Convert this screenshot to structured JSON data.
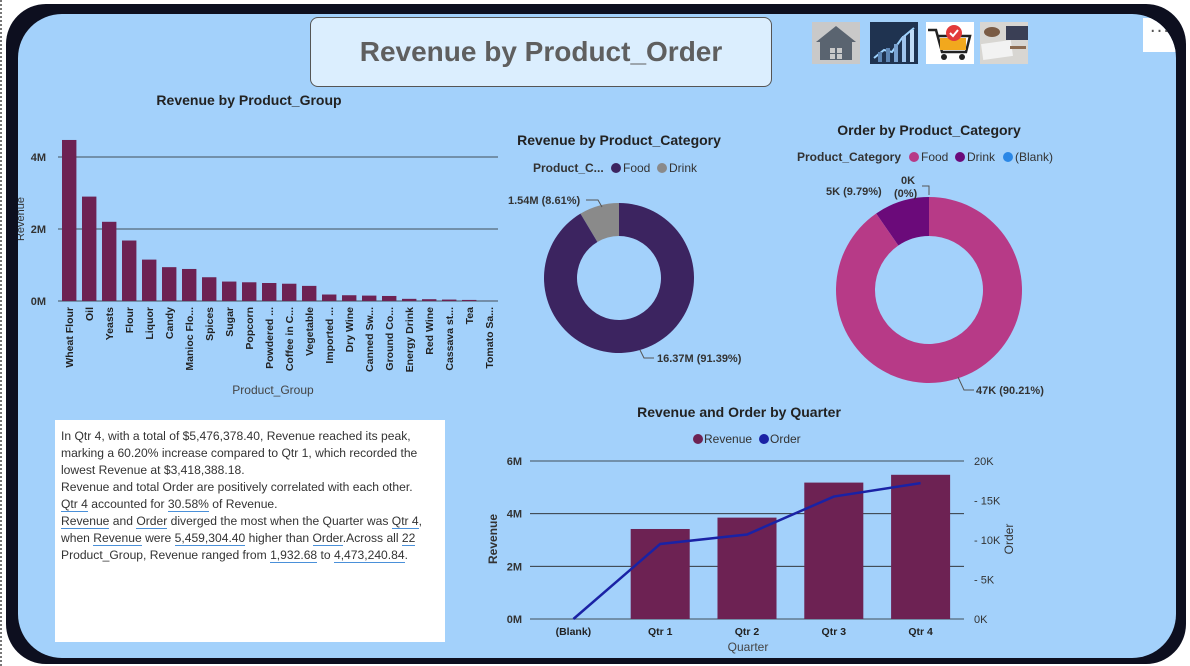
{
  "page": {
    "title": "Revenue by Product_Order"
  },
  "toolbar": {
    "more_label": "···",
    "icons": [
      "home-icon",
      "analytics-image-icon",
      "shopping-cart-icon",
      "business-meeting-image-icon"
    ]
  },
  "colors": {
    "maroon": "#6d2253",
    "purple": "#3c2460",
    "gray": "#8a8a8a",
    "pink": "#b73a87",
    "violet": "#6b0a7a",
    "blue": "#2a87e6",
    "navy": "#1a22a5",
    "canvas": "#a3d1fb"
  },
  "narrative": {
    "p1": "In Qtr 4, with a total of $5,476,378.40, Revenue reached its peak, marking a 60.20% increase compared to Qtr 1, which recorded the lowest Revenue at $3,418,388.18.",
    "p2": "Revenue and total Order are positively correlated with each other.",
    "p3_a": "Qtr 4",
    "p3_b": " accounted for ",
    "p3_c": "30.58%",
    "p3_d": " of Revenue.",
    "p4_a": "Revenue",
    "p4_b": " and ",
    "p4_c": "Order",
    "p4_d": " diverged the most when the Quarter was ",
    "p4_e": "Qtr 4",
    "p4_f": ", when ",
    "p4_g": "Revenue",
    "p4_h": " were ",
    "p4_i": "5,459,304.40",
    "p4_j": " higher than ",
    "p4_k": "Order",
    "p4_l": ".Across all ",
    "p4_m": "22",
    "p4_n": " Product_Group, Revenue ranged from ",
    "p4_o": "1,932.68",
    "p4_p": " to ",
    "p4_q": "4,473,240.84",
    "p4_r": "."
  },
  "chart_data": [
    {
      "type": "bar",
      "title": "Revenue by Product_Group",
      "xlabel": "Product_Group",
      "ylabel": "Revenue",
      "categories": [
        "Wheat Flour",
        "Oil",
        "Yeasts",
        "Flour",
        "Liquor",
        "Candy",
        "Manioc Flo...",
        "Spices",
        "Sugar",
        "Popcorn",
        "Powdered ...",
        "Coffee in C...",
        "Vegetable",
        "Imported ...",
        "Dry Wine",
        "Canned Sw...",
        "Ground Co...",
        "Energy Drink",
        "Red Wine",
        "Cassava st...",
        "Tea",
        "Tomato Sa..."
      ],
      "values": [
        4473240.84,
        2900000,
        2200000,
        1680000,
        1150000,
        940000,
        890000,
        660000,
        540000,
        520000,
        500000,
        480000,
        420000,
        180000,
        160000,
        150000,
        140000,
        60000,
        50000,
        40000,
        30000,
        1932.68
      ],
      "ylim": [
        0,
        5000000
      ],
      "yticks": [
        "0M",
        "2M",
        "4M"
      ],
      "grid": true
    },
    {
      "type": "pie",
      "title": "Revenue by Product_Category",
      "legend_title": "Product_C...",
      "labels": [
        "Food",
        "Drink"
      ],
      "values": [
        16370000,
        1540000
      ],
      "data_labels": [
        "16.37M (91.39%)",
        "1.54M (8.61%)"
      ],
      "legend": "top"
    },
    {
      "type": "pie",
      "title": "Order by Product_Category",
      "legend_title": "Product_Category",
      "labels": [
        "Food",
        "Drink",
        "(Blank)"
      ],
      "values": [
        47000,
        5000,
        0
      ],
      "data_labels": [
        "47K (90.21%)",
        "5K (9.79%)",
        "0K (0%)"
      ],
      "legend": "top"
    },
    {
      "type": "bar",
      "title": "Revenue and Order by Quarter",
      "xlabel": "Quarter",
      "ylabel": "Revenue",
      "y2label": "Order",
      "categories": [
        "(Blank)",
        "Qtr 1",
        "Qtr 2",
        "Qtr 3",
        "Qtr 4"
      ],
      "series": [
        {
          "name": "Revenue",
          "type": "bar",
          "values": [
            0,
            3418388.18,
            3850000,
            5180000,
            5476378.4
          ]
        },
        {
          "name": "Order",
          "type": "line",
          "axis": "right",
          "values": [
            0,
            9500,
            10700,
            15500,
            17200
          ]
        }
      ],
      "ylim": [
        0,
        6000000
      ],
      "y2lim": [
        0,
        20000
      ],
      "yticks": [
        "0M",
        "2M",
        "4M",
        "6M"
      ],
      "y2ticks": [
        "0K",
        "5K",
        "10K",
        "15K",
        "20K"
      ],
      "legend": "top",
      "grid": true
    }
  ]
}
